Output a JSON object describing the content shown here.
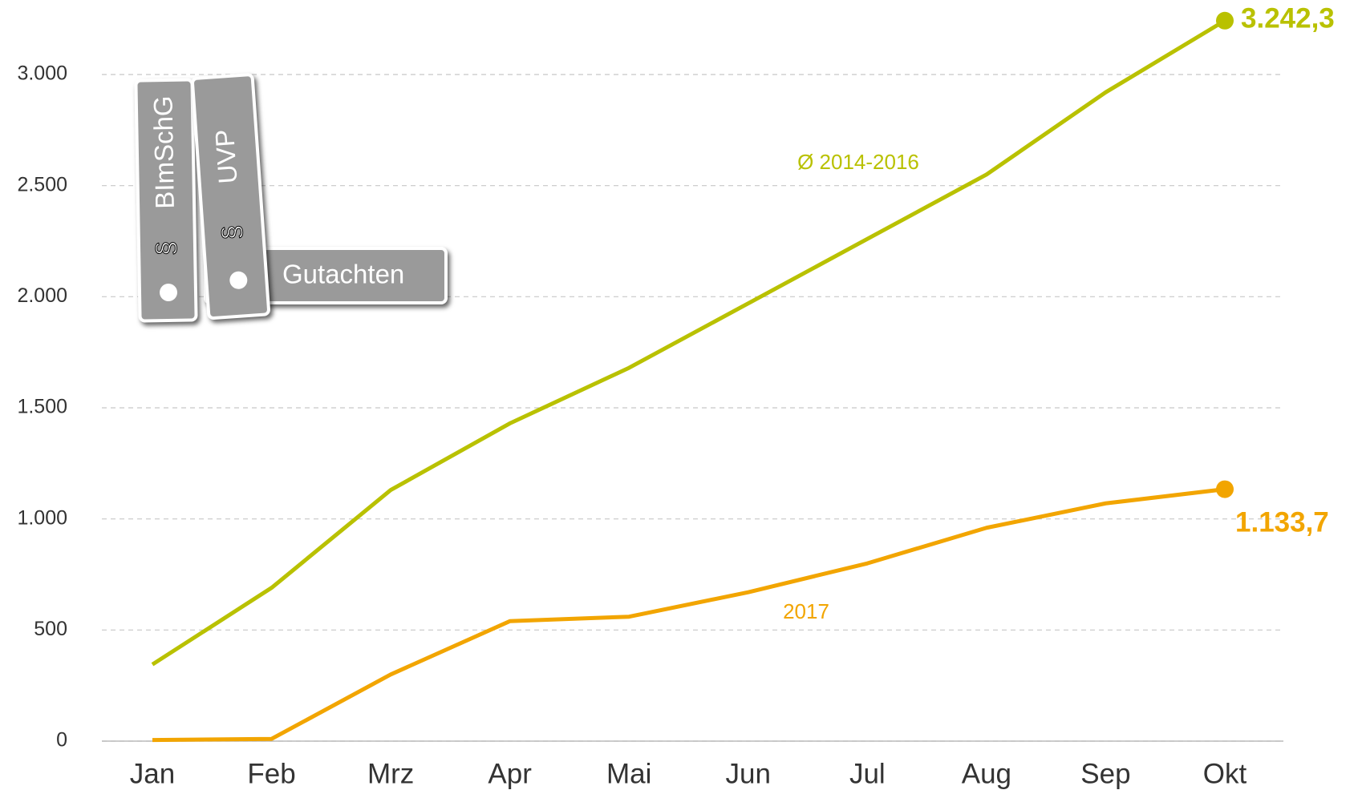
{
  "chart_data": {
    "type": "line",
    "categories": [
      "Jan",
      "Feb",
      "Mrz",
      "Apr",
      "Mai",
      "Jun",
      "Jul",
      "Aug",
      "Sep",
      "Okt"
    ],
    "series": [
      {
        "name": "Ø 2014-2016",
        "color": "#b9c100",
        "values": [
          345,
          690,
          1130,
          1430,
          1680,
          1970,
          2260,
          2550,
          2920,
          3242.3
        ],
        "value_labels": [
          null,
          null,
          null,
          null,
          null,
          null,
          null,
          null,
          null,
          "3.242,3"
        ]
      },
      {
        "name": "2017",
        "color": "#f2a500",
        "values": [
          5,
          10,
          300,
          540,
          560,
          670,
          800,
          960,
          1070,
          1133.7
        ],
        "value_labels": [
          null,
          null,
          null,
          null,
          null,
          null,
          null,
          null,
          null,
          "1.133,7"
        ]
      }
    ],
    "ylim": [
      0,
      3000
    ],
    "yticks": [
      0,
      500,
      {
        "value": 1000,
        "label": "1.000"
      },
      {
        "value": 1500,
        "label": "1.500"
      },
      {
        "value": 2000,
        "label": "2.000"
      },
      {
        "value": 2500,
        "label": "2.500"
      },
      {
        "value": 3000,
        "label": "3.000"
      }
    ],
    "grid": true
  },
  "illustration": {
    "binders": [
      "BImSchG",
      "UVP",
      "Gutachten"
    ],
    "symbol": "§"
  }
}
